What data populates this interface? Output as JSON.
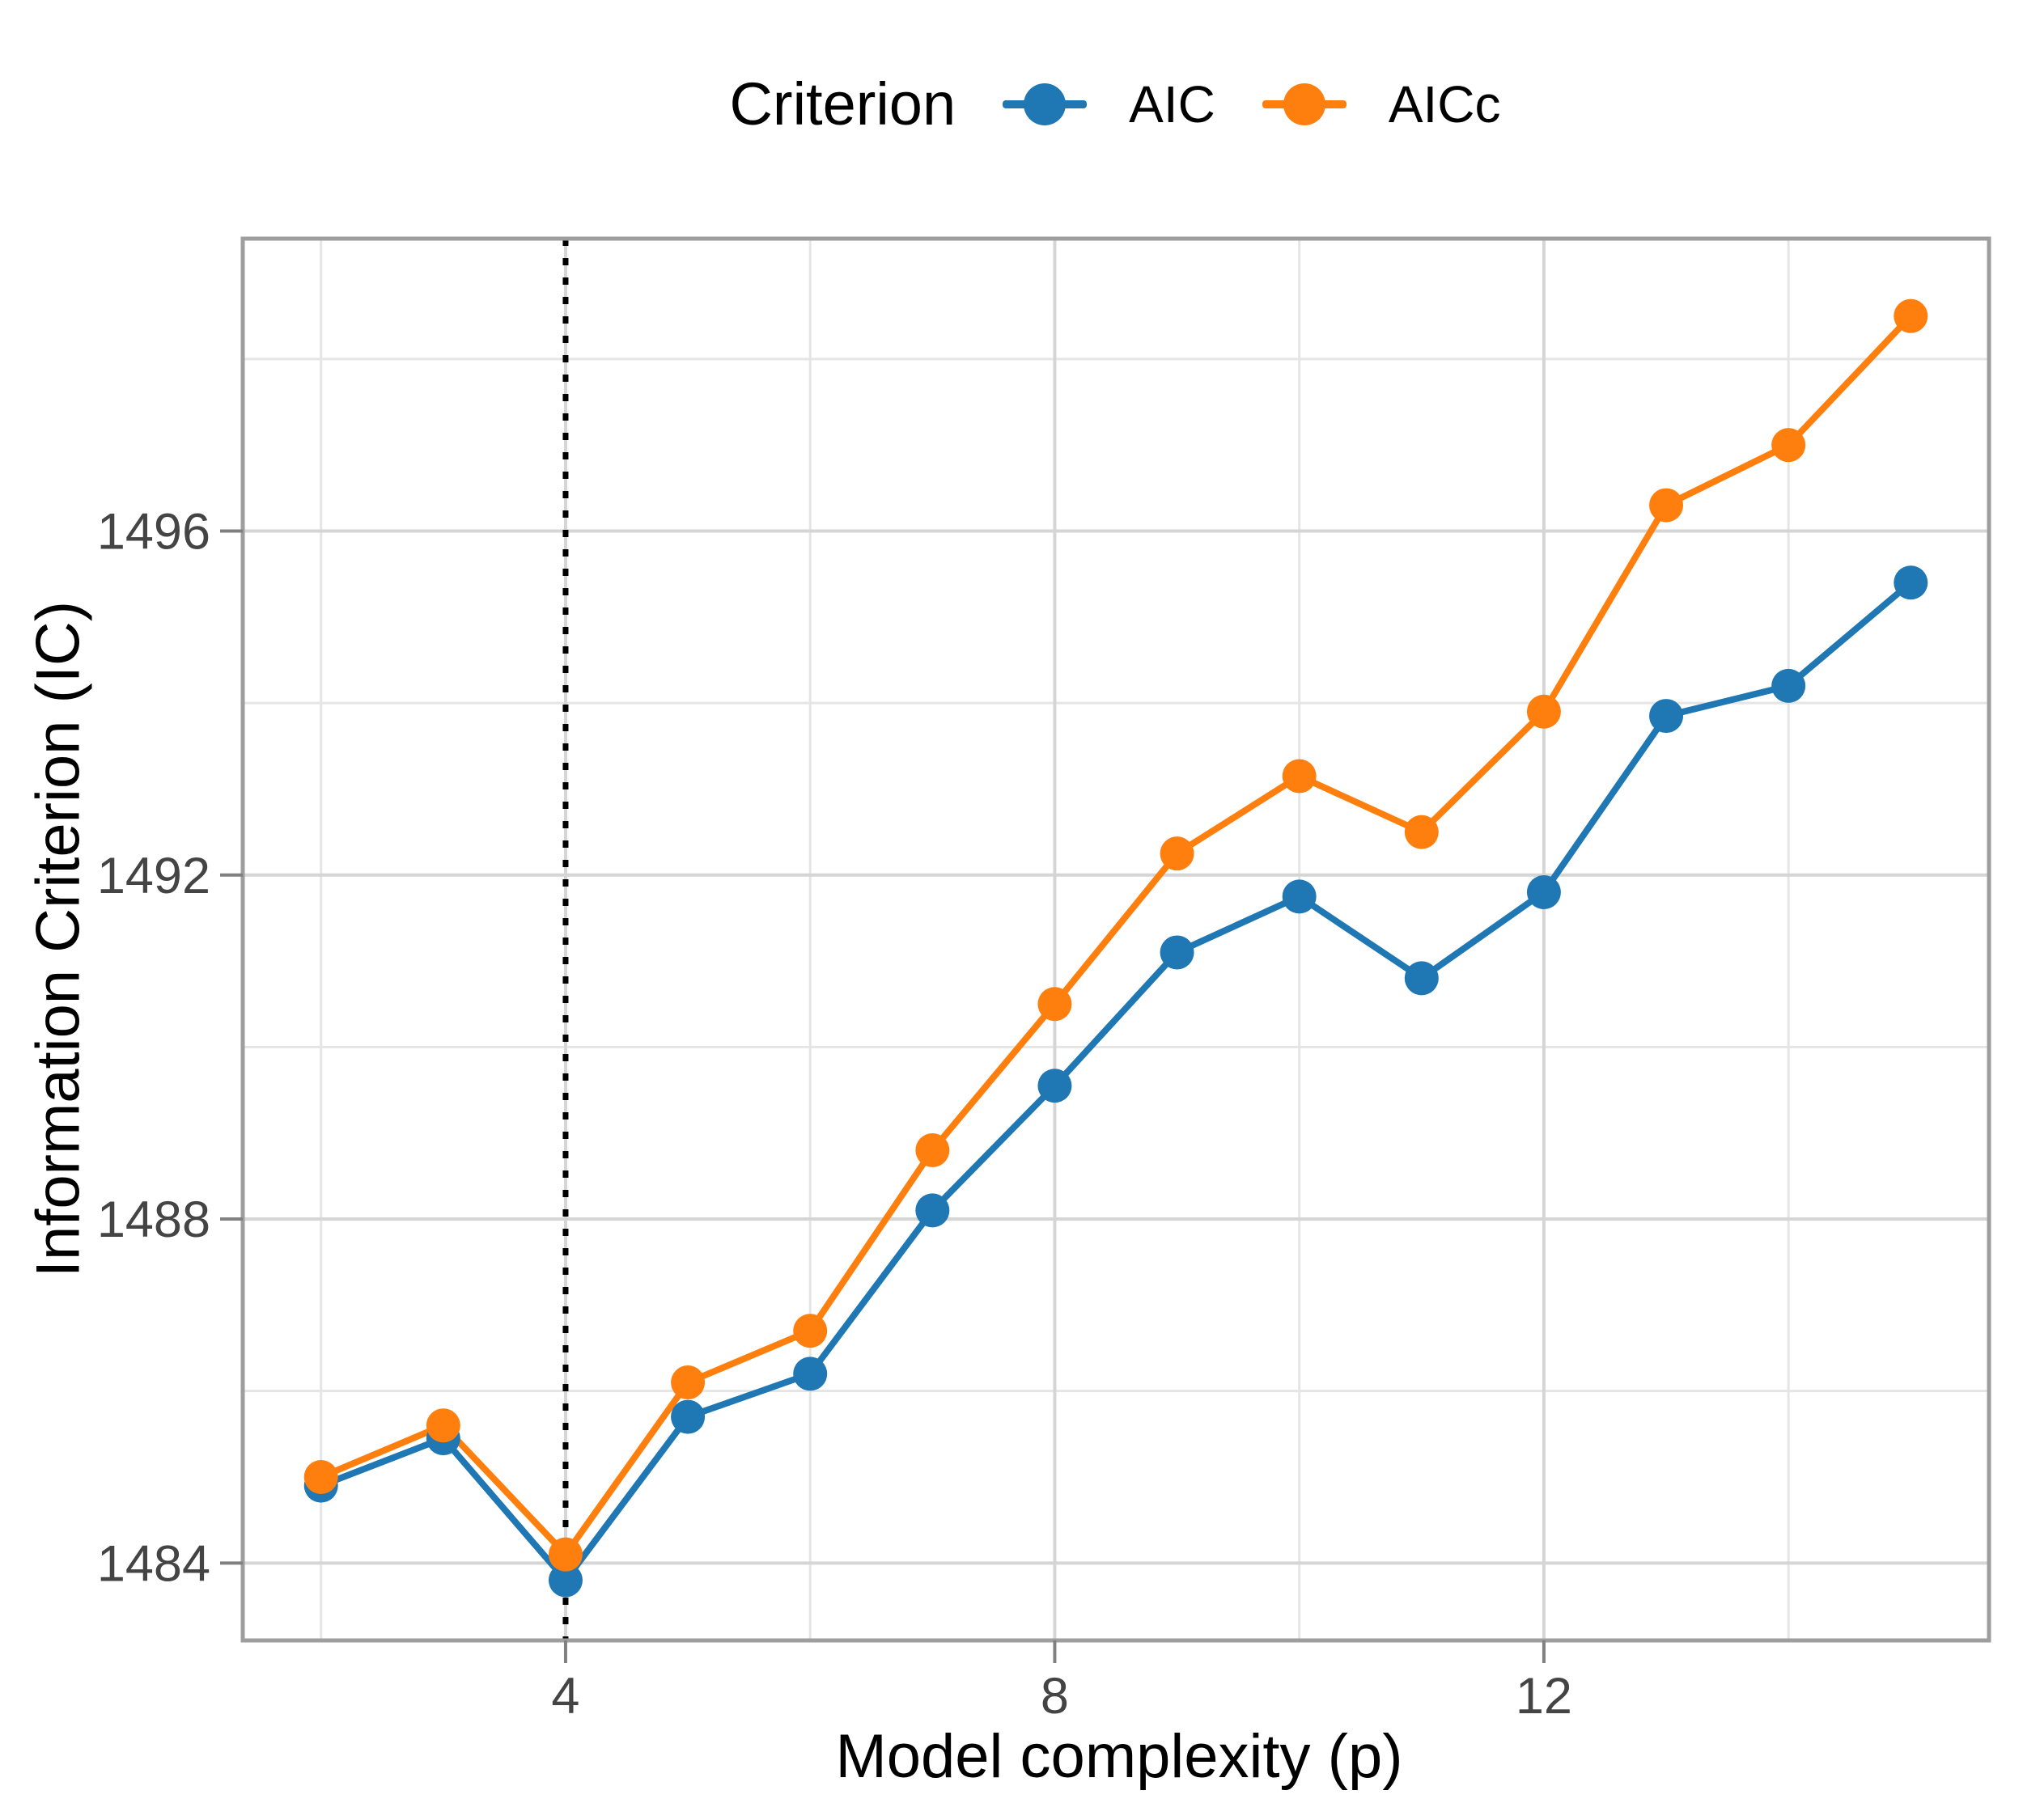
{
  "chart_data": {
    "type": "line",
    "legend": {
      "title": "Criterion",
      "position": "top"
    },
    "xlabel": "Model complexity (p)",
    "ylabel": "Information Criterion (IC)",
    "x": [
      2,
      3,
      4,
      5,
      6,
      7,
      8,
      9,
      10,
      11,
      12,
      13,
      14,
      15
    ],
    "series": [
      {
        "name": "AIC",
        "color": "#1F77B4",
        "values": [
          1484.9,
          1485.45,
          1483.8,
          1485.7,
          1486.2,
          1488.1,
          1489.55,
          1491.1,
          1491.75,
          1490.8,
          1491.8,
          1493.85,
          1494.2,
          1495.4
        ]
      },
      {
        "name": "AICc",
        "color": "#FF7F0E",
        "values": [
          1485.0,
          1485.6,
          1484.1,
          1486.1,
          1486.7,
          1488.8,
          1490.5,
          1492.25,
          1493.15,
          1492.5,
          1493.9,
          1496.3,
          1497.0,
          1498.5
        ]
      }
    ],
    "xlim": [
      1.36,
      15.64
    ],
    "ylim": [
      1483.1,
      1499.4
    ],
    "x_major_ticks": [
      4,
      8,
      12
    ],
    "x_minor_ticks": [
      2,
      6,
      10,
      14
    ],
    "y_major_ticks": [
      1484,
      1488,
      1492,
      1496
    ],
    "y_minor_ticks": [
      1486,
      1490,
      1494,
      1498
    ],
    "x_tick_labels": [
      "4",
      "8",
      "12"
    ],
    "y_tick_labels": [
      "1484",
      "1488",
      "1492",
      "1496"
    ],
    "vline": {
      "x": 4,
      "style": "dotted",
      "color": "#000000"
    },
    "grid": true,
    "colors": {
      "panel_border": "#9E9E9E",
      "tick_mark": "#808080",
      "grid_major": "#D5D5D5",
      "grid_minor": "#E5E5E5",
      "tick_label": "#444444"
    }
  }
}
